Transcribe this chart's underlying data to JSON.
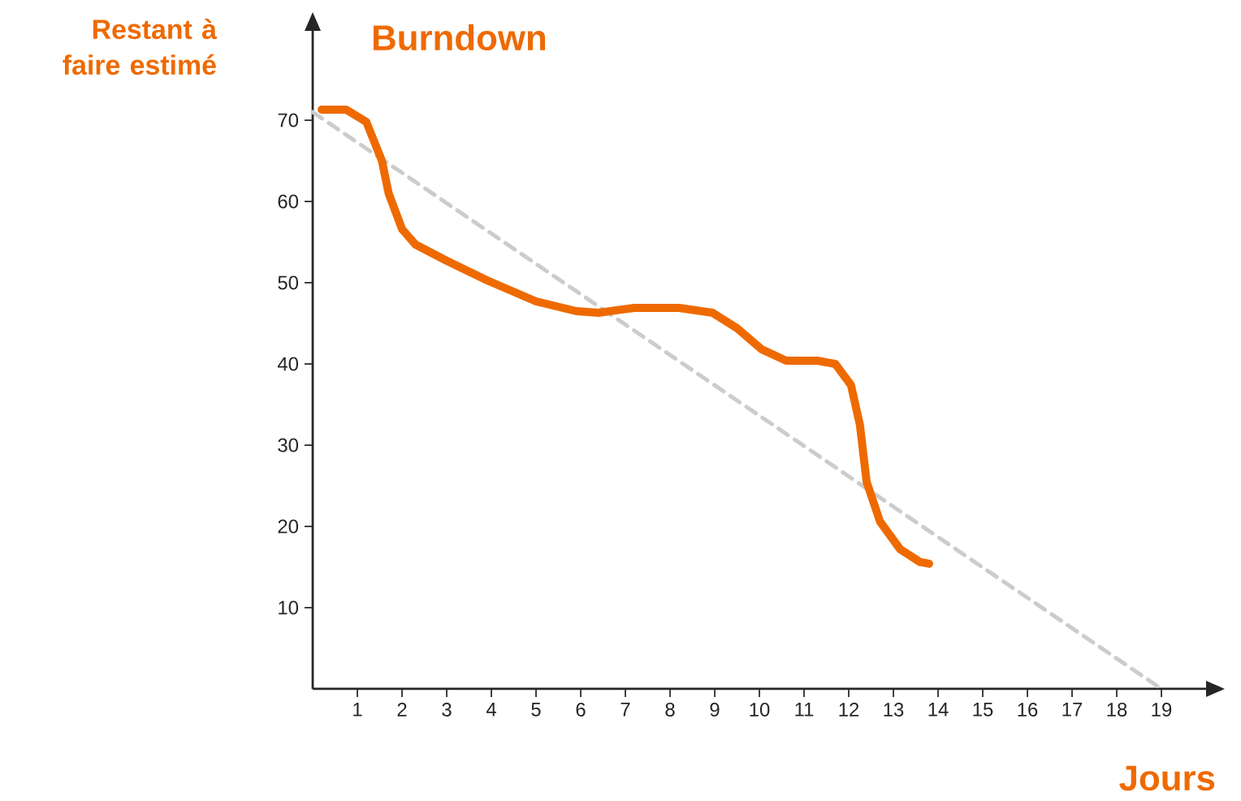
{
  "chart_data": {
    "type": "line",
    "title": "Burndown",
    "xlabel": "Jours",
    "ylabel": "Restant à faire estimé",
    "xlim": [
      0,
      20
    ],
    "ylim": [
      0,
      81
    ],
    "xticks": [
      1,
      2,
      3,
      4,
      5,
      6,
      7,
      8,
      9,
      10,
      11,
      12,
      13,
      14,
      15,
      16,
      17,
      18,
      19
    ],
    "yticks": [
      10,
      20,
      30,
      40,
      50,
      60,
      70
    ],
    "series": [
      {
        "color": "#cccccc",
        "line_style": "dashed",
        "x": [
          0,
          19
        ],
        "values": [
          71,
          0
        ]
      },
      {
        "color": "#ee6a00",
        "line_style": "solid",
        "x": [
          0.2,
          0.75,
          1.2,
          1.55,
          1.7,
          2.0,
          2.3,
          3.0,
          3.9,
          5.0,
          5.9,
          6.4,
          7.2,
          8.2,
          8.95,
          9.5,
          10.05,
          10.6,
          11.3,
          11.7,
          12.05,
          12.25,
          12.4,
          12.7,
          13.15,
          13.6,
          13.8
        ],
        "values": [
          71.3,
          71.3,
          69.8,
          65,
          61,
          56.6,
          54.7,
          52.7,
          50.3,
          47.7,
          46.5,
          46.3,
          46.9,
          46.9,
          46.3,
          44.4,
          41.8,
          40.4,
          40.4,
          40,
          37.4,
          32.5,
          25.5,
          20.6,
          17.2,
          15.6,
          15.4
        ]
      }
    ]
  }
}
